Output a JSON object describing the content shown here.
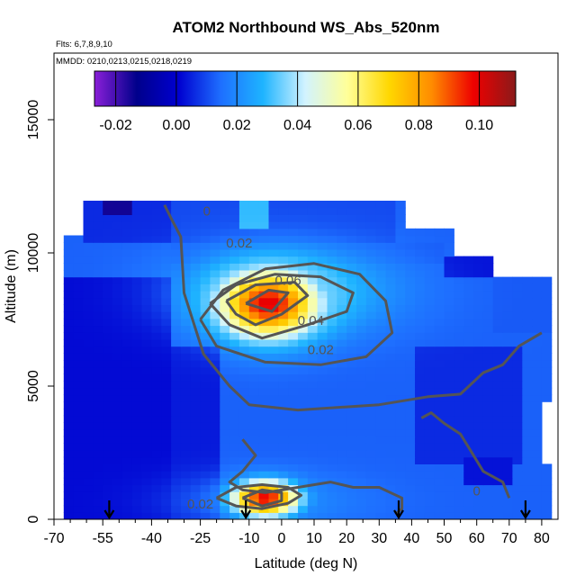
{
  "chart_data": {
    "type": "heatmap",
    "title": "ATOM2 Northbound WS_Abs_520nm",
    "flights_label": "Flts: 6,7,8,9,10",
    "dates_label": "MMDD: 0210,0213,0215,0218,0219",
    "xlabel": "Latitude (deg N)",
    "ylabel": "Altitude (m)",
    "xlim": [
      -70,
      85
    ],
    "ylim": [
      0,
      17500
    ],
    "x_ticks": [
      -70,
      -55,
      -40,
      -25,
      -10,
      0,
      10,
      20,
      30,
      40,
      50,
      60,
      70,
      80
    ],
    "y_ticks": [
      0,
      5000,
      10000,
      15000
    ],
    "colorbar": {
      "range": [
        -0.027,
        0.112
      ],
      "ticks": [
        -0.02,
        0.0,
        0.02,
        0.04,
        0.06,
        0.08,
        0.1
      ],
      "tick_labels": [
        "-0.02",
        "0.00",
        "0.02",
        "0.04",
        "0.06",
        "0.08",
        "0.10"
      ],
      "colors": [
        "#8a1fd8",
        "#00008b",
        "#0000d0",
        "#1e6fff",
        "#1eb4ff",
        "#d2f3ff",
        "#ffff99",
        "#ffd700",
        "#ff8c00",
        "#ee0000",
        "#8b1a1a"
      ]
    },
    "background_value": 0.013,
    "regions": [
      {
        "lat": [
          -68,
          82
        ],
        "alt": [
          0,
          9000
        ],
        "value": 0.013
      },
      {
        "lat": [
          -68,
          -34
        ],
        "alt": [
          0,
          9000
        ],
        "value": 0.002
      },
      {
        "lat": [
          -34,
          -18
        ],
        "alt": [
          0,
          6500
        ],
        "value": 0.004
      },
      {
        "lat": [
          -60,
          -34
        ],
        "alt": [
          10500,
          11900
        ],
        "value": 0.006
      },
      {
        "lat": [
          -34,
          35
        ],
        "alt": [
          10500,
          11900
        ],
        "value": 0.01
      },
      {
        "lat": [
          -34,
          50
        ],
        "alt": [
          9500,
          10500
        ],
        "value": 0.012
      },
      {
        "lat": [
          50,
          65
        ],
        "alt": [
          9000,
          10000
        ],
        "value": 0.003
      },
      {
        "lat": [
          66,
          82
        ],
        "alt": [
          7000,
          9000
        ],
        "value": 0.012
      },
      {
        "lat": [
          40,
          75
        ],
        "alt": [
          2000,
          6500
        ],
        "value": 0.006
      },
      {
        "lat": [
          55,
          72
        ],
        "alt": [
          1400,
          2400
        ],
        "value": 0.003
      },
      {
        "lat": [
          -14,
          -4
        ],
        "alt": [
          11000,
          11900
        ],
        "value": 0.03
      },
      {
        "lat": [
          -55,
          -45
        ],
        "alt": [
          11500,
          11900
        ],
        "value": -0.015
      }
    ],
    "blobs": [
      {
        "lat": -4,
        "alt": 8100,
        "peak": 0.1,
        "sigma_lat": 11,
        "sigma_alt": 900
      },
      {
        "lat": 2,
        "alt": 8600,
        "peak": 0.035,
        "sigma_lat": 22,
        "sigma_alt": 1100
      },
      {
        "lat": -5,
        "alt": 800,
        "peak": 0.1,
        "sigma_lat": 7,
        "sigma_alt": 450
      },
      {
        "lat": -2,
        "alt": 700,
        "peak": 0.02,
        "sigma_lat": 20,
        "sigma_alt": 700
      }
    ],
    "contours": [
      {
        "level": "0",
        "points": [
          [
            -36,
            11800
          ],
          [
            -34,
            11300
          ],
          [
            -31,
            10600
          ],
          [
            -30,
            8500
          ],
          [
            -24,
            6200
          ],
          [
            -16,
            5000
          ],
          [
            -10,
            4300
          ],
          [
            5,
            4100
          ],
          [
            30,
            4300
          ],
          [
            45,
            4600
          ],
          [
            55,
            4700
          ],
          [
            62,
            5500
          ],
          [
            68,
            5800
          ],
          [
            73,
            6500
          ],
          [
            80,
            7000
          ]
        ]
      },
      {
        "level": "0",
        "points": [
          [
            -12,
            3000
          ],
          [
            -8,
            2400
          ],
          [
            -12,
            1800
          ],
          [
            -16,
            1400
          ],
          [
            -12,
            1100
          ],
          [
            -5,
            1000
          ],
          [
            5,
            1200
          ],
          [
            15,
            1400
          ],
          [
            22,
            1200
          ],
          [
            30,
            1200
          ],
          [
            37,
            800
          ],
          [
            37,
            400
          ],
          [
            35,
            200
          ]
        ]
      },
      {
        "level": "0",
        "points": [
          [
            70,
            800
          ],
          [
            68,
            1400
          ],
          [
            62,
            1800
          ],
          [
            58,
            2600
          ],
          [
            55,
            3200
          ],
          [
            50,
            3600
          ],
          [
            46,
            4000
          ],
          [
            43,
            3800
          ]
        ]
      },
      {
        "level": "0.02",
        "points": [
          [
            -25,
            7500
          ],
          [
            -18,
            8600
          ],
          [
            -5,
            9400
          ],
          [
            10,
            9600
          ],
          [
            24,
            9200
          ],
          [
            32,
            8200
          ],
          [
            34,
            7000
          ],
          [
            26,
            6100
          ],
          [
            12,
            5800
          ],
          [
            -5,
            5900
          ],
          [
            -20,
            6500
          ],
          [
            -25,
            7500
          ]
        ]
      },
      {
        "level": "0.04",
        "points": [
          [
            -22,
            8100
          ],
          [
            -14,
            8800
          ],
          [
            -2,
            9200
          ],
          [
            12,
            9100
          ],
          [
            22,
            8500
          ],
          [
            20,
            7800
          ],
          [
            8,
            7300
          ],
          [
            -6,
            6800
          ],
          [
            -16,
            7300
          ],
          [
            -22,
            8100
          ]
        ]
      },
      {
        "level": "0.06",
        "points": [
          [
            -17,
            8200
          ],
          [
            -8,
            8800
          ],
          [
            4,
            8900
          ],
          [
            8,
            8400
          ],
          [
            0,
            7700
          ],
          [
            -8,
            7300
          ],
          [
            -14,
            7700
          ],
          [
            -17,
            8200
          ]
        ]
      },
      {
        "level": "0.08",
        "points": [
          [
            -11,
            8100
          ],
          [
            -4,
            8600
          ],
          [
            2,
            8500
          ],
          [
            -3,
            7800
          ],
          [
            -11,
            8100
          ]
        ]
      },
      {
        "level": "0.02",
        "points": [
          [
            -20,
            800
          ],
          [
            -14,
            1200
          ],
          [
            -6,
            1300
          ],
          [
            2,
            1200
          ],
          [
            6,
            900
          ],
          [
            2,
            600
          ],
          [
            -6,
            400
          ],
          [
            -14,
            500
          ],
          [
            -20,
            800
          ]
        ]
      },
      {
        "level": "0.06",
        "points": [
          [
            -12,
            800
          ],
          [
            -6,
            1100
          ],
          [
            0,
            1000
          ],
          [
            0,
            700
          ],
          [
            -6,
            500
          ],
          [
            -12,
            800
          ]
        ]
      }
    ],
    "contour_labels": [
      {
        "text": "0",
        "lat": -23,
        "alt": 11400
      },
      {
        "text": "0.02",
        "lat": -13,
        "alt": 10200
      },
      {
        "text": "0.06",
        "lat": 2,
        "alt": 8800
      },
      {
        "text": "0.04",
        "lat": 9,
        "alt": 7300
      },
      {
        "text": "0.02",
        "lat": 12,
        "alt": 6200
      },
      {
        "text": "0",
        "lat": 60,
        "alt": 900
      },
      {
        "text": "0.02",
        "lat": -25,
        "alt": 400
      }
    ],
    "flight_arrows_lat": [
      -53,
      -11,
      36,
      75
    ]
  }
}
